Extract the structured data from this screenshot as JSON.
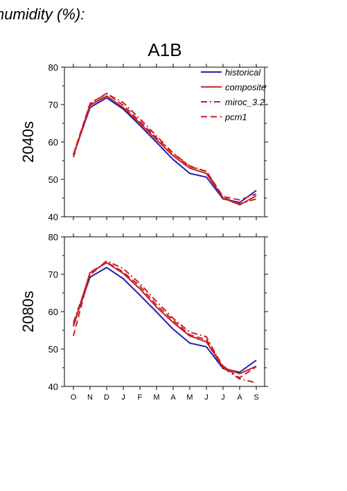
{
  "header": "humidity (%):",
  "scenario": "A1B",
  "chart_data": {
    "type": "line",
    "months": [
      "O",
      "N",
      "D",
      "J",
      "F",
      "M",
      "A",
      "M",
      "J",
      "J",
      "A",
      "S"
    ],
    "ylim": [
      40,
      80
    ],
    "yticks": [
      40,
      50,
      60,
      70,
      80
    ],
    "legend_position": "top-right",
    "series_styles": [
      {
        "name": "historical",
        "color": "#1f1fb4",
        "dash": "solid"
      },
      {
        "name": "composite",
        "color": "#c81e1e",
        "dash": "solid"
      },
      {
        "name": "miroc_3.2",
        "color": "#c81e1e",
        "dash": "dashdot"
      },
      {
        "name": "pcm1",
        "color": "#c81e1e",
        "dash": "dashed"
      }
    ],
    "panels": [
      {
        "label": "2040s",
        "series": [
          {
            "name": "historical",
            "values": [
              56.5,
              69.2,
              71.8,
              68.8,
              64.4,
              59.9,
              55.3,
              51.6,
              50.6,
              44.8,
              43.8,
              47.0
            ]
          },
          {
            "name": "composite",
            "values": [
              56.5,
              69.8,
              72.3,
              69.2,
              65.0,
              60.6,
              56.3,
              53.0,
              51.6,
              45.0,
              43.2,
              45.6
            ]
          },
          {
            "name": "miroc_3.2",
            "values": [
              55.9,
              70.2,
              72.9,
              70.5,
              66.2,
              61.6,
              57.0,
              53.6,
              52.1,
              45.2,
              43.4,
              44.8
            ]
          },
          {
            "name": "pcm1",
            "values": [
              56.7,
              70.3,
              73.0,
              69.8,
              65.5,
              61.1,
              56.9,
              53.4,
              52.2,
              45.4,
              44.5,
              46.1
            ]
          }
        ]
      },
      {
        "label": "2080s",
        "series": [
          {
            "name": "historical",
            "values": [
              56.5,
              69.2,
              71.8,
              68.8,
              64.4,
              59.9,
              55.3,
              51.6,
              50.6,
              44.8,
              43.8,
              47.0
            ]
          },
          {
            "name": "composite",
            "values": [
              56.0,
              70.4,
              73.1,
              70.2,
              66.1,
              61.2,
              57.1,
              53.5,
              51.9,
              45.1,
              43.4,
              45.4
            ]
          },
          {
            "name": "miroc_3.2",
            "values": [
              57.1,
              69.8,
              73.6,
              71.5,
              67.5,
              62.7,
              58.2,
              54.5,
              53.3,
              45.0,
              42.0,
              41.0
            ]
          },
          {
            "name": "pcm1",
            "values": [
              53.5,
              70.5,
              73.2,
              70.6,
              66.8,
              61.8,
              57.7,
              53.8,
              52.5,
              45.5,
              42.3,
              45.3
            ]
          }
        ]
      }
    ]
  }
}
